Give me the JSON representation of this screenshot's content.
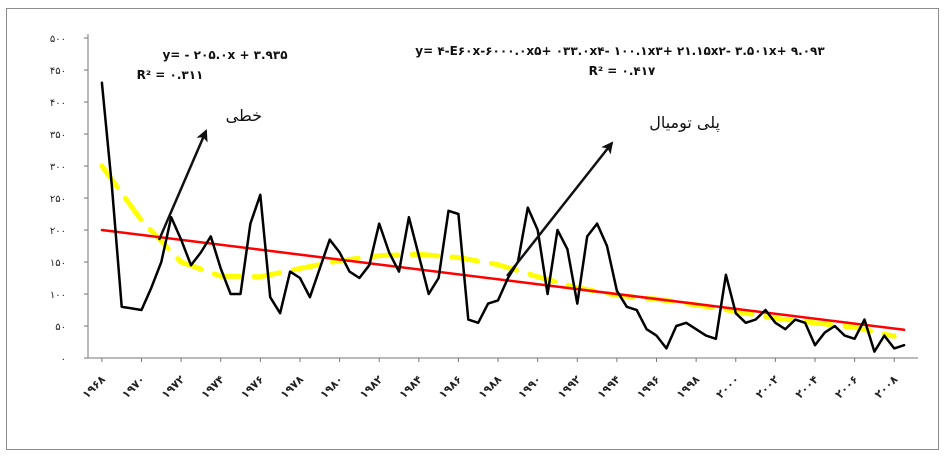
{
  "chart_data": {
    "type": "line",
    "title": "",
    "xlabel": "",
    "ylabel": "",
    "ylim": [
      0,
      500
    ],
    "yticks": [
      "۰",
      "۵۰",
      "۱۰۰",
      "۱۵۰",
      "۲۰۰",
      "۲۵۰",
      "۳۰۰",
      "۳۵۰",
      "۴۰۰",
      "۴۵۰",
      "۵۰۰"
    ],
    "xticks": [
      {
        "year": 1968,
        "label": "۱۹۶۸"
      },
      {
        "year": 1970,
        "label": "۱۹۷۰"
      },
      {
        "year": 1972,
        "label": "۱۹۷۲"
      },
      {
        "year": 1974,
        "label": "۱۹۷۴"
      },
      {
        "year": 1976,
        "label": "۱۹۷۶"
      },
      {
        "year": 1978,
        "label": "۱۹۷۸"
      },
      {
        "year": 1980,
        "label": "۱۹۸۰"
      },
      {
        "year": 1982,
        "label": "۱۹۸۲"
      },
      {
        "year": 1984,
        "label": "۱۹۸۴"
      },
      {
        "year": 1986,
        "label": "۱۹۸۶"
      },
      {
        "year": 1988,
        "label": "۱۹۸۸"
      },
      {
        "year": 1990,
        "label": "۱۹۹۰"
      },
      {
        "year": 1992,
        "label": "۱۹۹۲"
      },
      {
        "year": 1994,
        "label": "۱۹۹۴"
      },
      {
        "year": 1996,
        "label": "۱۹۹۶"
      },
      {
        "year": 1998,
        "label": "۱۹۹۸"
      },
      {
        "year": 2000,
        "label": "۲۰۰۰"
      },
      {
        "year": 2002,
        "label": "۲۰۰۲"
      },
      {
        "year": 2004,
        "label": "۲۰۰۴"
      },
      {
        "year": 2006,
        "label": "۲۰۰۶"
      },
      {
        "year": 2008,
        "label": "۲۰۰۸"
      }
    ],
    "series": [
      {
        "style": "observed",
        "color": "#000000",
        "x": [
          1968,
          1968.5,
          1969,
          1970,
          1970.5,
          1971,
          1971.5,
          1972,
          1972.5,
          1973,
          1973.5,
          1974,
          1974.5,
          1975,
          1975.5,
          1976,
          1976.5,
          1977,
          1977.5,
          1978,
          1978.5,
          1979,
          1979.5,
          1980,
          1980.5,
          1981,
          1981.5,
          1982,
          1982.5,
          1983,
          1983.5,
          1984,
          1984.5,
          1985,
          1985.5,
          1986,
          1986.5,
          1987,
          1987.5,
          1988,
          1988.5,
          1989,
          1989.5,
          1990,
          1990.5,
          1991,
          1991.5,
          1992,
          1992.5,
          1993,
          1993.5,
          1994,
          1994.5,
          1995,
          1995.5,
          1996,
          1996.5,
          1997,
          1997.5,
          1998,
          1998.5,
          1999,
          1999.5,
          2000,
          2000.5,
          2001,
          2001.5,
          2002,
          2002.5,
          2003,
          2003.5,
          2004,
          2004.5,
          2005,
          2005.5,
          2006,
          2006.5,
          2007,
          2007.5,
          2008,
          2008.5
        ],
        "y": [
          430,
          270,
          80,
          75,
          110,
          150,
          220,
          185,
          145,
          165,
          190,
          140,
          100,
          100,
          210,
          255,
          95,
          70,
          135,
          125,
          95,
          140,
          185,
          165,
          135,
          125,
          145,
          210,
          165,
          135,
          220,
          160,
          100,
          125,
          230,
          225,
          60,
          55,
          85,
          90,
          125,
          150,
          235,
          200,
          100,
          200,
          170,
          85,
          190,
          210,
          175,
          105,
          80,
          75,
          45,
          35,
          15,
          50,
          55,
          45,
          35,
          30,
          130,
          70,
          55,
          60,
          75,
          55,
          45,
          60,
          55,
          20,
          40,
          50,
          35,
          30,
          60,
          10,
          35,
          15,
          20
        ],
        "stroke_width": 2.5
      },
      {
        "style": "linear-trend",
        "color": "#ff0000",
        "x": [
          1968,
          2008.5
        ],
        "y": [
          200,
          44
        ],
        "stroke_width": 2.5
      },
      {
        "style": "polynomial-trend",
        "color": "#ffff00",
        "x": [
          1968,
          1970,
          1972,
          1974,
          1976,
          1978,
          1980,
          1982,
          1984,
          1986,
          1988,
          1990,
          1992,
          1994,
          1996,
          1998,
          2000,
          2002,
          2004,
          2006,
          2008
        ],
        "y": [
          300,
          215,
          150,
          128,
          127,
          140,
          152,
          160,
          162,
          157,
          146,
          127,
          110,
          98,
          92,
          83,
          73,
          62,
          55,
          48,
          34
        ],
        "stroke_width": 5
      }
    ],
    "annotations": [
      {
        "text": "y= - ۲۰۵.۰x + ۳.۹۳۵",
        "role": "linear-equation"
      },
      {
        "text": "R² = ۰.۳۱۱",
        "role": "linear-r2"
      },
      {
        "text": "y= ۴-E۶۰x-۶۰۰۰.۰x۵+ ۰۳۳.۰x۴- ۱۰۰.۱x۳+ ۲۱.۱۵x۲- ۳.۵۰۱x+ ۹.۰۹۳",
        "role": "poly-equation"
      },
      {
        "text": "R² = ۰.۴۱۷",
        "role": "poly-r2"
      },
      {
        "text": "خطی",
        "role": "linear-label"
      },
      {
        "text": "پلی تومیال",
        "role": "poly-label"
      }
    ]
  }
}
